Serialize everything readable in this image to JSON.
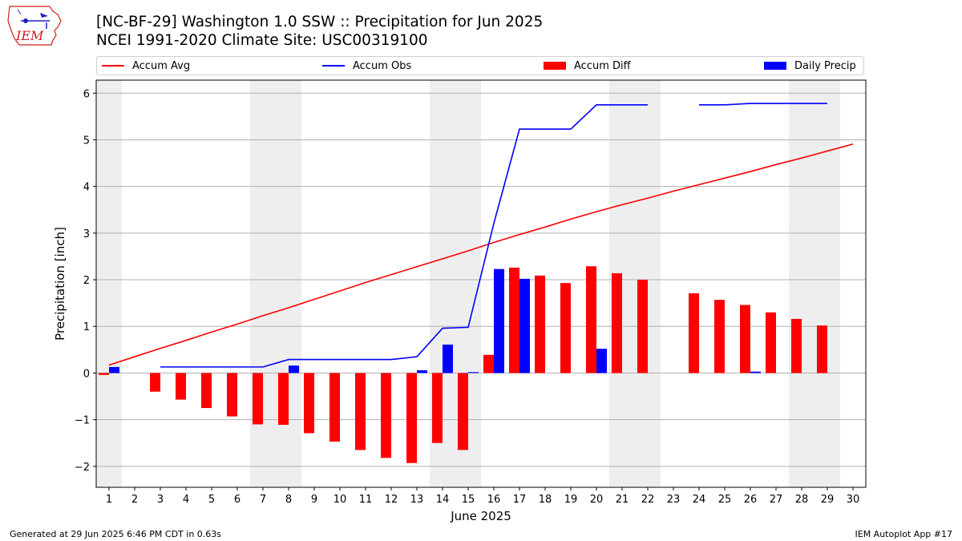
{
  "header": {
    "title_line1": "[NC-BF-29] Washington 1.0 SSW :: Precipitation for Jun 2025",
    "title_line2": "NCEI 1991-2020 Climate Site: USC00319100",
    "logo_text": "IEM"
  },
  "legend": {
    "items": [
      {
        "label": "Accum Avg",
        "kind": "line",
        "color": "#ff0000"
      },
      {
        "label": "Accum Obs",
        "kind": "line",
        "color": "#0000ff"
      },
      {
        "label": "Accum Diff",
        "kind": "bar",
        "color": "#ff0000"
      },
      {
        "label": "Daily Precip",
        "kind": "bar",
        "color": "#0000ff"
      }
    ]
  },
  "footer": {
    "generated": "Generated at 29 Jun 2025 6:46 PM CDT in 0.63s",
    "app": "IEM Autoplot App #17"
  },
  "chart_data": {
    "type": "bar",
    "xlabel": "June 2025",
    "ylabel": "Precipitation [inch]",
    "x": [
      1,
      2,
      3,
      4,
      5,
      6,
      7,
      8,
      9,
      10,
      11,
      12,
      13,
      14,
      15,
      16,
      17,
      18,
      19,
      20,
      21,
      22,
      23,
      24,
      25,
      26,
      27,
      28,
      29,
      30
    ],
    "xlim": [
      0.5,
      30.5
    ],
    "ylim": [
      -2.45,
      6.28
    ],
    "yticks": [
      -2,
      -1,
      0,
      1,
      2,
      3,
      4,
      5,
      6
    ],
    "ytick_labels": [
      "−2",
      "−1",
      "0",
      "1",
      "2",
      "3",
      "4",
      "5",
      "6"
    ],
    "grid": "horizontal",
    "legend_placement": "top",
    "weekend_shading": [
      [
        0.5,
        1.5
      ],
      [
        6.5,
        8.5
      ],
      [
        13.5,
        15.5
      ],
      [
        20.5,
        22.5
      ],
      [
        27.5,
        29.5
      ]
    ],
    "shading_color": "#eeeeee",
    "series": [
      {
        "name": "Accum Avg",
        "kind": "line",
        "color": "#ff0000",
        "values": [
          0.17,
          0.35,
          0.53,
          0.7,
          0.88,
          1.05,
          1.23,
          1.4,
          1.58,
          1.76,
          1.94,
          2.11,
          2.28,
          2.45,
          2.62,
          2.8,
          2.97,
          3.13,
          3.3,
          3.46,
          3.61,
          3.75,
          3.9,
          4.04,
          4.18,
          4.32,
          4.47,
          4.61,
          4.76,
          4.91
        ]
      },
      {
        "name": "Accum Obs",
        "kind": "line",
        "color": "#0000ff",
        "values": [
          null,
          null,
          0.13,
          0.13,
          0.13,
          0.13,
          0.13,
          0.29,
          0.29,
          0.29,
          0.29,
          0.29,
          0.35,
          0.96,
          0.98,
          3.21,
          5.23,
          5.23,
          5.23,
          5.75,
          5.75,
          5.75,
          null,
          5.75,
          5.75,
          5.78,
          5.78,
          5.78,
          5.78,
          null
        ]
      },
      {
        "name": "Accum Diff",
        "kind": "bar",
        "color": "#ff0000",
        "values": [
          -0.04,
          null,
          -0.4,
          -0.57,
          -0.75,
          -0.93,
          -1.1,
          -1.11,
          -1.29,
          -1.47,
          -1.65,
          -1.82,
          -1.93,
          -1.5,
          -1.65,
          0.39,
          2.26,
          2.09,
          1.93,
          2.29,
          2.14,
          2.0,
          null,
          1.71,
          1.57,
          1.46,
          1.3,
          1.16,
          1.02,
          null
        ]
      },
      {
        "name": "Daily Precip",
        "kind": "bar",
        "color": "#0000ff",
        "values": [
          0.13,
          null,
          0,
          0,
          0,
          0,
          0,
          0.16,
          0,
          0,
          0,
          0,
          0.06,
          0.61,
          0.02,
          2.23,
          2.02,
          0,
          0,
          0.52,
          0,
          0,
          null,
          0,
          0,
          0.03,
          0,
          0,
          0,
          null
        ]
      }
    ]
  }
}
